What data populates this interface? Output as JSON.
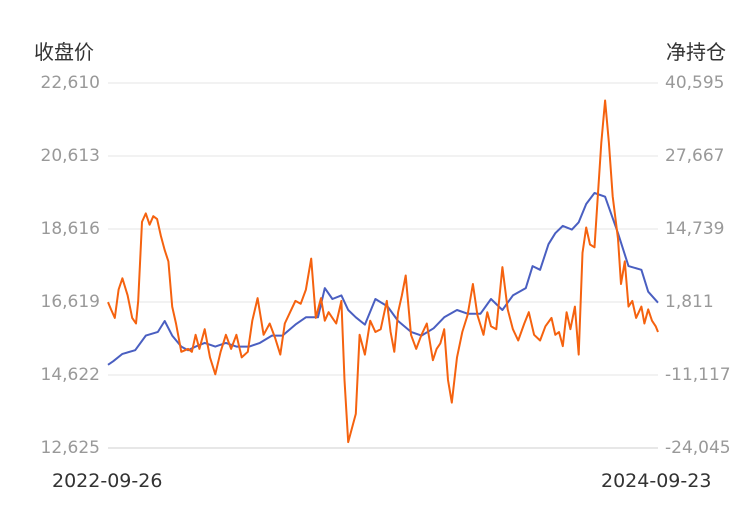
{
  "chart_data": {
    "type": "line",
    "title": "",
    "left_axis_label": "收盘价",
    "right_axis_label": "净持仓",
    "ylim_left": [
      12625,
      22610
    ],
    "ylim_right": [
      -24045,
      40595
    ],
    "y_ticks_left": [
      "22,610",
      "20,613",
      "18,616",
      "16,619",
      "14,622",
      "12,625"
    ],
    "y_ticks_right": [
      "40,595",
      "27,667",
      "14,739",
      "1,811",
      "-11,117",
      "-24,045"
    ],
    "x_start": "2022-09-26",
    "x_end": "2024-09-23",
    "x_ticks": [
      "2022-09-26",
      "2024-09-23"
    ],
    "grid": true,
    "series": [
      {
        "axis": "left",
        "color": "#4a5fc1",
        "x": [
          "2022-09-26",
          "2022-10-03",
          "2022-10-15",
          "2022-11-01",
          "2022-11-15",
          "2022-12-01",
          "2022-12-10",
          "2022-12-20",
          "2023-01-01",
          "2023-01-10",
          "2023-01-20",
          "2023-02-01",
          "2023-02-15",
          "2023-03-01",
          "2023-03-15",
          "2023-04-01",
          "2023-04-15",
          "2023-05-01",
          "2023-05-15",
          "2023-06-01",
          "2023-06-15",
          "2023-07-01",
          "2023-07-10",
          "2023-07-20",
          "2023-08-01",
          "2023-08-10",
          "2023-08-20",
          "2023-09-01",
          "2023-09-15",
          "2023-10-01",
          "2023-10-15",
          "2023-11-01",
          "2023-11-15",
          "2023-12-01",
          "2023-12-15",
          "2024-01-01",
          "2024-01-15",
          "2024-02-01",
          "2024-02-15",
          "2024-03-01",
          "2024-03-15",
          "2024-04-01",
          "2024-04-10",
          "2024-04-20",
          "2024-05-01",
          "2024-05-10",
          "2024-05-20",
          "2024-06-01",
          "2024-06-10",
          "2024-06-20",
          "2024-07-01",
          "2024-07-15",
          "2024-08-01",
          "2024-08-15",
          "2024-09-01",
          "2024-09-10",
          "2024-09-23"
        ],
        "values": [
          14900,
          15000,
          15200,
          15300,
          15700,
          15800,
          16100,
          15700,
          15400,
          15300,
          15400,
          15500,
          15400,
          15500,
          15400,
          15400,
          15500,
          15700,
          15700,
          16000,
          16200,
          16200,
          17000,
          16700,
          16800,
          16400,
          16200,
          16000,
          16700,
          16500,
          16100,
          15800,
          15700,
          15900,
          16200,
          16400,
          16300,
          16300,
          16700,
          16400,
          16800,
          17000,
          17600,
          17500,
          18200,
          18500,
          18700,
          18600,
          18800,
          19300,
          19600,
          19500,
          18500,
          17600,
          17500,
          16900,
          16600
        ]
      },
      {
        "axis": "right",
        "color": "#f5620f",
        "x": [
          "2022-09-26",
          "2022-09-30",
          "2022-10-05",
          "2022-10-10",
          "2022-10-15",
          "2022-10-22",
          "2022-10-28",
          "2022-11-02",
          "2022-11-05",
          "2022-11-10",
          "2022-11-15",
          "2022-11-20",
          "2022-11-25",
          "2022-11-30",
          "2022-12-05",
          "2022-12-10",
          "2022-12-15",
          "2022-12-20",
          "2022-12-25",
          "2023-01-01",
          "2023-01-10",
          "2023-01-15",
          "2023-01-20",
          "2023-01-25",
          "2023-02-01",
          "2023-02-08",
          "2023-02-15",
          "2023-02-22",
          "2023-03-01",
          "2023-03-08",
          "2023-03-15",
          "2023-03-22",
          "2023-03-30",
          "2023-04-05",
          "2023-04-12",
          "2023-04-20",
          "2023-04-28",
          "2023-05-05",
          "2023-05-12",
          "2023-05-18",
          "2023-05-25",
          "2023-06-01",
          "2023-06-08",
          "2023-06-15",
          "2023-06-22",
          "2023-06-28",
          "2023-07-05",
          "2023-07-10",
          "2023-07-15",
          "2023-07-20",
          "2023-07-25",
          "2023-08-01",
          "2023-08-05",
          "2023-08-10",
          "2023-08-15",
          "2023-08-20",
          "2023-08-25",
          "2023-09-01",
          "2023-09-08",
          "2023-09-15",
          "2023-09-22",
          "2023-09-30",
          "2023-10-05",
          "2023-10-10",
          "2023-10-15",
          "2023-10-20",
          "2023-10-25",
          "2023-11-01",
          "2023-11-08",
          "2023-11-15",
          "2023-11-22",
          "2023-11-30",
          "2023-12-05",
          "2023-12-10",
          "2023-12-15",
          "2023-12-20",
          "2023-12-25",
          "2024-01-01",
          "2024-01-08",
          "2024-01-15",
          "2024-01-22",
          "2024-01-28",
          "2024-02-05",
          "2024-02-10",
          "2024-02-15",
          "2024-02-22",
          "2024-03-01",
          "2024-03-08",
          "2024-03-15",
          "2024-03-22",
          "2024-03-30",
          "2024-04-05",
          "2024-04-12",
          "2024-04-20",
          "2024-04-27",
          "2024-05-05",
          "2024-05-10",
          "2024-05-15",
          "2024-05-20",
          "2024-05-25",
          "2024-05-30",
          "2024-06-05",
          "2024-06-10",
          "2024-06-15",
          "2024-06-20",
          "2024-06-25",
          "2024-07-01",
          "2024-07-05",
          "2024-07-10",
          "2024-07-15",
          "2024-07-20",
          "2024-07-25",
          "2024-08-01",
          "2024-08-05",
          "2024-08-10",
          "2024-08-15",
          "2024-08-20",
          "2024-08-25",
          "2024-09-01",
          "2024-09-05",
          "2024-09-10",
          "2024-09-15",
          "2024-09-20",
          "2024-09-23"
        ],
        "values": [
          1800,
          500,
          -1000,
          4000,
          6000,
          3000,
          -1000,
          -2000,
          2000,
          16000,
          17500,
          15500,
          17000,
          16500,
          13500,
          11000,
          9000,
          1000,
          -2000,
          -7000,
          -6500,
          -7000,
          -4000,
          -6500,
          -3000,
          -8000,
          -11000,
          -7000,
          -4000,
          -6500,
          -4000,
          -8000,
          -7000,
          -1500,
          2500,
          -4000,
          -2000,
          -4500,
          -7500,
          -2000,
          0,
          2000,
          1500,
          4000,
          9500,
          -1000,
          2500,
          -1500,
          0,
          -1000,
          -2000,
          2000,
          -12000,
          -23000,
          -20500,
          -18000,
          -4000,
          -7500,
          -1500,
          -3500,
          -3000,
          2000,
          -3500,
          -7000,
          0,
          3000,
          6500,
          -4000,
          -6500,
          -4000,
          -2000,
          -8500,
          -6500,
          -5500,
          -3000,
          -12000,
          -16000,
          -8000,
          -3500,
          -500,
          5000,
          -500,
          -4000,
          0,
          -2500,
          -3000,
          8000,
          500,
          -3000,
          -5000,
          -2000,
          0,
          -4000,
          -5000,
          -2500,
          -1000,
          -4000,
          -3500,
          -6000,
          0,
          -3000,
          1000,
          -7500,
          10500,
          15000,
          12000,
          11500,
          20000,
          30000,
          37500,
          30000,
          20500,
          13000,
          5000,
          9000,
          1000,
          2000,
          -1000,
          1000,
          -2000,
          500,
          -1500,
          -2500,
          -3500
        ]
      }
    ]
  }
}
